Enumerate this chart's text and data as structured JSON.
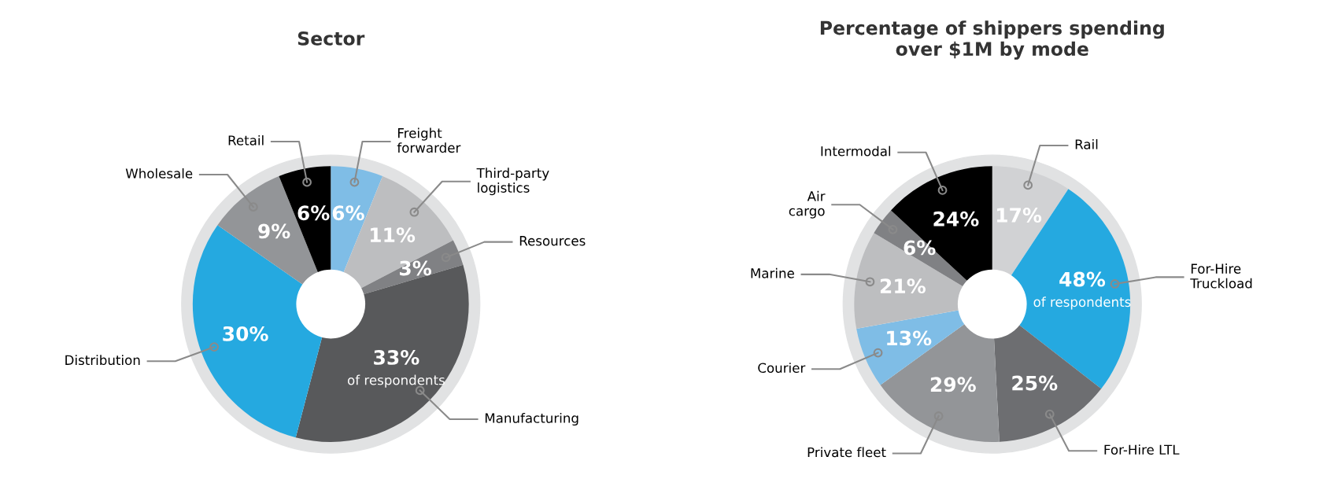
{
  "chart_data": [
    {
      "type": "donut",
      "title": "Sector",
      "categories": [
        "Freight\nforwarder",
        "Third-party\nlogistics",
        "Resources",
        "Manufacturing",
        "Distribution",
        "Wholesale",
        "Retail"
      ],
      "values": [
        6,
        11,
        3,
        33,
        30,
        9,
        6
      ],
      "value_labels": [
        "6%",
        "11%",
        "3%",
        "33%",
        "30%",
        "9%",
        "6%"
      ],
      "colors": [
        "#7fbde6",
        "#bdbec0",
        "#808184",
        "#58595b",
        "#25a9e0",
        "#939598",
        "#000000"
      ],
      "annotations": [
        {
          "text": "of respondents",
          "x": "Manufacturing"
        }
      ]
    },
    {
      "type": "donut",
      "title": "Percentage of shippers spending\nover $1M by mode",
      "categories": [
        "Rail",
        "For-Hire\nTruckload",
        "For-Hire LTL",
        "Private fleet",
        "Courier",
        "Marine",
        "Air\ncargo",
        "Intermodal"
      ],
      "values": [
        17,
        48,
        25,
        29,
        13,
        21,
        6,
        24
      ],
      "value_labels": [
        "17%",
        "48%",
        "25%",
        "29%",
        "13%",
        "21%",
        "6%",
        "24%"
      ],
      "colors": [
        "#d1d2d4",
        "#25a9e0",
        "#6d6e71",
        "#939598",
        "#7fbde6",
        "#bdbec0",
        "#808184",
        "#000000"
      ],
      "annotations": [
        {
          "text": "of respondents",
          "x": "For-Hire\nTruckload"
        }
      ]
    }
  ]
}
